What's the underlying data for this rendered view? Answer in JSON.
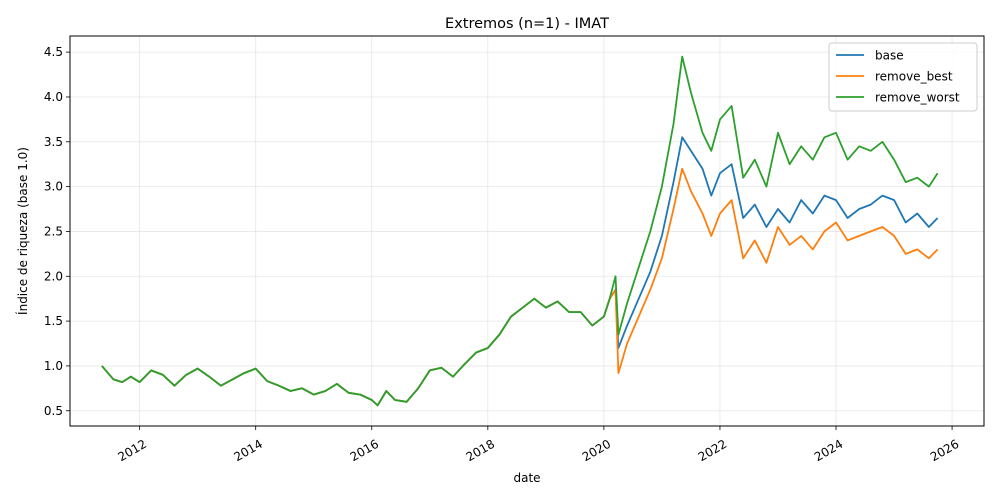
{
  "chart_data": {
    "type": "line",
    "title": "Extremos (n=1) - IMAT",
    "xlabel": "date",
    "ylabel": "Índice de riqueza (base 1.0)",
    "xlim": [
      2010.8,
      2026.55
    ],
    "ylim": [
      0.33,
      4.68
    ],
    "x_ticks": [
      2012,
      2014,
      2016,
      2018,
      2020,
      2022,
      2024,
      2026
    ],
    "x_tick_labels": [
      "2012",
      "2014",
      "2016",
      "2018",
      "2020",
      "2022",
      "2024",
      "2026"
    ],
    "y_ticks": [
      0.5,
      1.0,
      1.5,
      2.0,
      2.5,
      3.0,
      3.5,
      4.0,
      4.5
    ],
    "y_tick_labels": [
      "0.5",
      "1.0",
      "1.5",
      "2.0",
      "2.5",
      "3.0",
      "3.5",
      "4.0",
      "4.5"
    ],
    "grid": true,
    "legend_position": "top-right",
    "series": [
      {
        "name": "base",
        "color": "#1f77b4",
        "x": [
          2011.35,
          2011.55,
          2011.7,
          2011.85,
          2012.0,
          2012.2,
          2012.4,
          2012.6,
          2012.8,
          2013.0,
          2013.2,
          2013.4,
          2013.6,
          2013.8,
          2014.0,
          2014.2,
          2014.4,
          2014.6,
          2014.8,
          2015.0,
          2015.2,
          2015.4,
          2015.6,
          2015.8,
          2016.0,
          2016.1,
          2016.25,
          2016.4,
          2016.6,
          2016.8,
          2017.0,
          2017.2,
          2017.4,
          2017.6,
          2017.8,
          2018.0,
          2018.2,
          2018.4,
          2018.6,
          2018.8,
          2019.0,
          2019.2,
          2019.4,
          2019.6,
          2019.8,
          2020.0,
          2020.1,
          2020.2,
          2020.25,
          2020.4,
          2020.6,
          2020.8,
          2021.0,
          2021.2,
          2021.35,
          2021.5,
          2021.7,
          2021.85,
          2022.0,
          2022.2,
          2022.4,
          2022.6,
          2022.8,
          2023.0,
          2023.2,
          2023.4,
          2023.6,
          2023.8,
          2024.0,
          2024.2,
          2024.4,
          2024.6,
          2024.8,
          2025.0,
          2025.2,
          2025.4,
          2025.6,
          2025.75
        ],
        "y": [
          1.0,
          0.85,
          0.82,
          0.88,
          0.82,
          0.95,
          0.9,
          0.78,
          0.9,
          0.97,
          0.88,
          0.78,
          0.85,
          0.92,
          0.97,
          0.83,
          0.78,
          0.72,
          0.75,
          0.68,
          0.72,
          0.8,
          0.7,
          0.68,
          0.62,
          0.56,
          0.72,
          0.62,
          0.6,
          0.75,
          0.95,
          0.98,
          0.88,
          1.02,
          1.15,
          1.2,
          1.35,
          1.55,
          1.65,
          1.75,
          1.65,
          1.72,
          1.6,
          1.6,
          1.45,
          1.55,
          1.75,
          1.85,
          1.2,
          1.45,
          1.75,
          2.05,
          2.45,
          3.05,
          3.55,
          3.4,
          3.2,
          2.9,
          3.15,
          3.25,
          2.65,
          2.8,
          2.55,
          2.75,
          2.6,
          2.85,
          2.7,
          2.9,
          2.85,
          2.65,
          2.75,
          2.8,
          2.9,
          2.85,
          2.6,
          2.7,
          2.55,
          2.65
        ]
      },
      {
        "name": "remove_best",
        "color": "#ff7f0e",
        "x": [
          2011.35,
          2011.55,
          2011.7,
          2011.85,
          2012.0,
          2012.2,
          2012.4,
          2012.6,
          2012.8,
          2013.0,
          2013.2,
          2013.4,
          2013.6,
          2013.8,
          2014.0,
          2014.2,
          2014.4,
          2014.6,
          2014.8,
          2015.0,
          2015.2,
          2015.4,
          2015.6,
          2015.8,
          2016.0,
          2016.1,
          2016.25,
          2016.4,
          2016.6,
          2016.8,
          2017.0,
          2017.2,
          2017.4,
          2017.6,
          2017.8,
          2018.0,
          2018.2,
          2018.4,
          2018.6,
          2018.8,
          2019.0,
          2019.2,
          2019.4,
          2019.6,
          2019.8,
          2020.0,
          2020.1,
          2020.2,
          2020.25,
          2020.4,
          2020.6,
          2020.8,
          2021.0,
          2021.2,
          2021.35,
          2021.5,
          2021.7,
          2021.85,
          2022.0,
          2022.2,
          2022.4,
          2022.6,
          2022.8,
          2023.0,
          2023.2,
          2023.4,
          2023.6,
          2023.8,
          2024.0,
          2024.2,
          2024.4,
          2024.6,
          2024.8,
          2025.0,
          2025.2,
          2025.4,
          2025.6,
          2025.75
        ],
        "y": [
          1.0,
          0.85,
          0.82,
          0.88,
          0.82,
          0.95,
          0.9,
          0.78,
          0.9,
          0.97,
          0.88,
          0.78,
          0.85,
          0.92,
          0.97,
          0.83,
          0.78,
          0.72,
          0.75,
          0.68,
          0.72,
          0.8,
          0.7,
          0.68,
          0.62,
          0.56,
          0.72,
          0.62,
          0.6,
          0.75,
          0.95,
          0.98,
          0.88,
          1.02,
          1.15,
          1.2,
          1.35,
          1.55,
          1.65,
          1.75,
          1.65,
          1.72,
          1.6,
          1.6,
          1.45,
          1.55,
          1.75,
          1.85,
          0.92,
          1.25,
          1.55,
          1.85,
          2.2,
          2.75,
          3.2,
          2.95,
          2.7,
          2.45,
          2.7,
          2.85,
          2.2,
          2.4,
          2.15,
          2.55,
          2.35,
          2.45,
          2.3,
          2.5,
          2.6,
          2.4,
          2.45,
          2.5,
          2.55,
          2.45,
          2.25,
          2.3,
          2.2,
          2.3
        ]
      },
      {
        "name": "remove_worst",
        "color": "#2ca02c",
        "x": [
          2011.35,
          2011.55,
          2011.7,
          2011.85,
          2012.0,
          2012.2,
          2012.4,
          2012.6,
          2012.8,
          2013.0,
          2013.2,
          2013.4,
          2013.6,
          2013.8,
          2014.0,
          2014.2,
          2014.4,
          2014.6,
          2014.8,
          2015.0,
          2015.2,
          2015.4,
          2015.6,
          2015.8,
          2016.0,
          2016.1,
          2016.25,
          2016.4,
          2016.6,
          2016.8,
          2017.0,
          2017.2,
          2017.4,
          2017.6,
          2017.8,
          2018.0,
          2018.2,
          2018.4,
          2018.6,
          2018.8,
          2019.0,
          2019.2,
          2019.4,
          2019.6,
          2019.8,
          2020.0,
          2020.1,
          2020.2,
          2020.25,
          2020.4,
          2020.6,
          2020.8,
          2021.0,
          2021.2,
          2021.35,
          2021.5,
          2021.7,
          2021.85,
          2022.0,
          2022.2,
          2022.4,
          2022.6,
          2022.8,
          2023.0,
          2023.2,
          2023.4,
          2023.6,
          2023.8,
          2024.0,
          2024.2,
          2024.4,
          2024.6,
          2024.8,
          2025.0,
          2025.2,
          2025.4,
          2025.6,
          2025.75
        ],
        "y": [
          1.0,
          0.85,
          0.82,
          0.88,
          0.82,
          0.95,
          0.9,
          0.78,
          0.9,
          0.97,
          0.88,
          0.78,
          0.85,
          0.92,
          0.97,
          0.83,
          0.78,
          0.72,
          0.75,
          0.68,
          0.72,
          0.8,
          0.7,
          0.68,
          0.62,
          0.56,
          0.72,
          0.62,
          0.6,
          0.75,
          0.95,
          0.98,
          0.88,
          1.02,
          1.15,
          1.2,
          1.35,
          1.55,
          1.65,
          1.75,
          1.65,
          1.72,
          1.6,
          1.6,
          1.45,
          1.55,
          1.75,
          2.0,
          1.35,
          1.7,
          2.1,
          2.5,
          3.0,
          3.7,
          4.45,
          4.05,
          3.6,
          3.4,
          3.75,
          3.9,
          3.1,
          3.3,
          3.0,
          3.6,
          3.25,
          3.45,
          3.3,
          3.55,
          3.6,
          3.3,
          3.45,
          3.4,
          3.5,
          3.3,
          3.05,
          3.1,
          3.0,
          3.15
        ]
      }
    ]
  }
}
